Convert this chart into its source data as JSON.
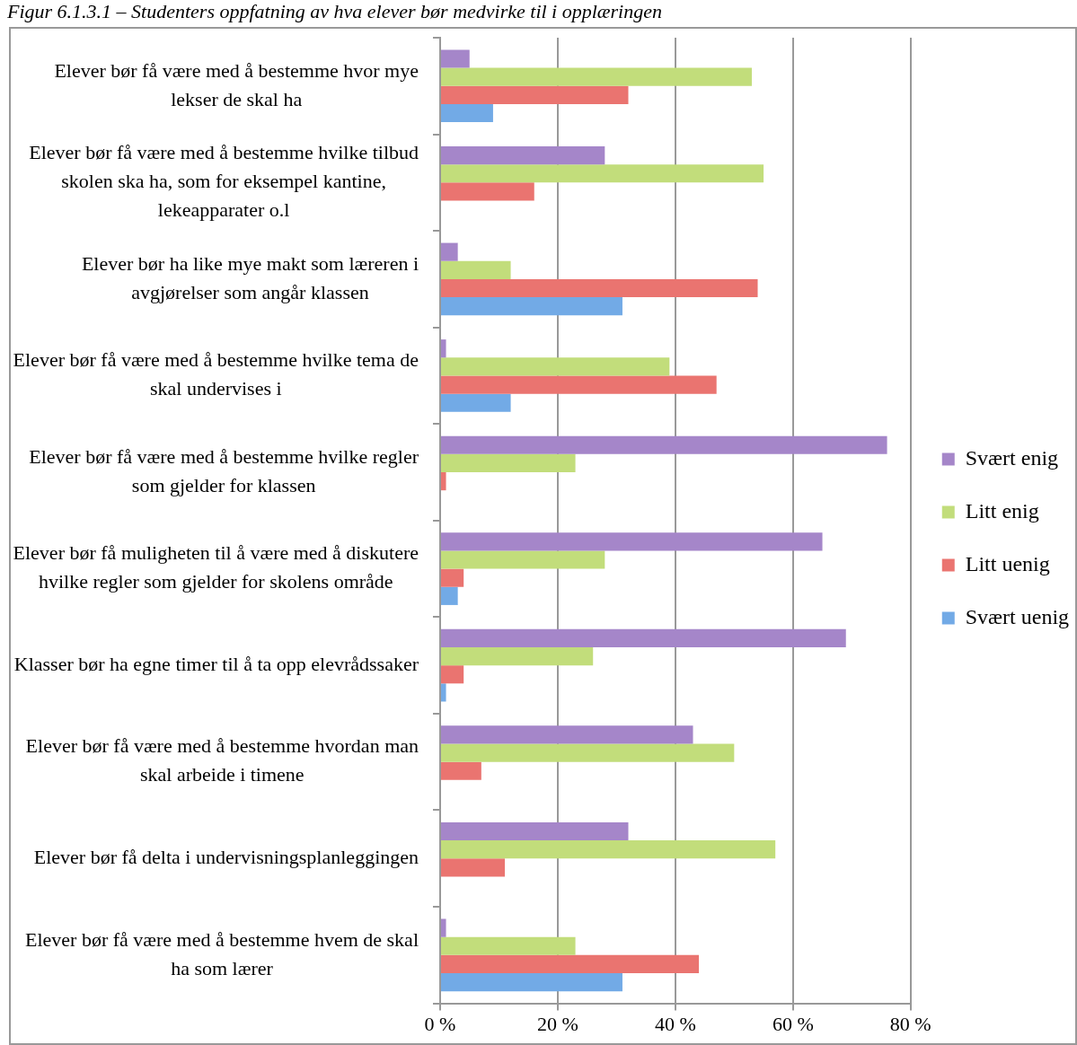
{
  "chart_data": {
    "type": "bar",
    "orientation": "horizontal",
    "title": "Figur 6.1.3.1 – Studenters oppfatning av hva elever bør medvirke til i opplæringen",
    "categories": [
      "Elever bør få være med å bestemme hvor mye lekser de skal ha",
      "Elever bør få være med å bestemme hvilke tilbud skolen ska ha, som for eksempel kantine, lekeapparater o.l",
      "Elever bør ha like mye makt som læreren i avgjørelser som angår klassen",
      "Elever bør få være med å bestemme hvilke tema de skal undervises i",
      "Elever bør få være med å bestemme hvilke regler som gjelder for klassen",
      "Elever bør få muligheten til å være med å diskutere hvilke regler som gjelder for skolens område",
      "Klasser bør ha egne timer til å ta opp elevrådssaker",
      "Elever bør få være med å bestemme hvordan man skal arbeide i timene",
      "Elever bør få delta i undervisningsplanleggingen",
      "Elever bør få være med å bestemme hvem de skal ha som lærer"
    ],
    "series": [
      {
        "name": "Svært enig",
        "color": "#a586c9",
        "values": [
          5,
          28,
          3,
          1,
          76,
          65,
          69,
          43,
          32,
          1
        ]
      },
      {
        "name": "Litt enig",
        "color": "#c2dd7b",
        "values": [
          53,
          55,
          12,
          39,
          23,
          28,
          26,
          50,
          57,
          23
        ]
      },
      {
        "name": "Litt uenig",
        "color": "#ea7470",
        "values": [
          32,
          16,
          54,
          47,
          1,
          4,
          4,
          7,
          11,
          44
        ]
      },
      {
        "name": "Svært uenig",
        "color": "#72aae6",
        "values": [
          9,
          0,
          31,
          12,
          0,
          3,
          1,
          0,
          0,
          31
        ]
      }
    ],
    "xlim": [
      0,
      80
    ],
    "xticks": [
      {
        "value": 0,
        "label": "0 %"
      },
      {
        "value": 20,
        "label": "20 %"
      },
      {
        "value": 40,
        "label": "40 %"
      },
      {
        "value": 60,
        "label": "60 %"
      },
      {
        "value": 80,
        "label": "80 %"
      }
    ],
    "grid": "x",
    "legend": "right"
  }
}
